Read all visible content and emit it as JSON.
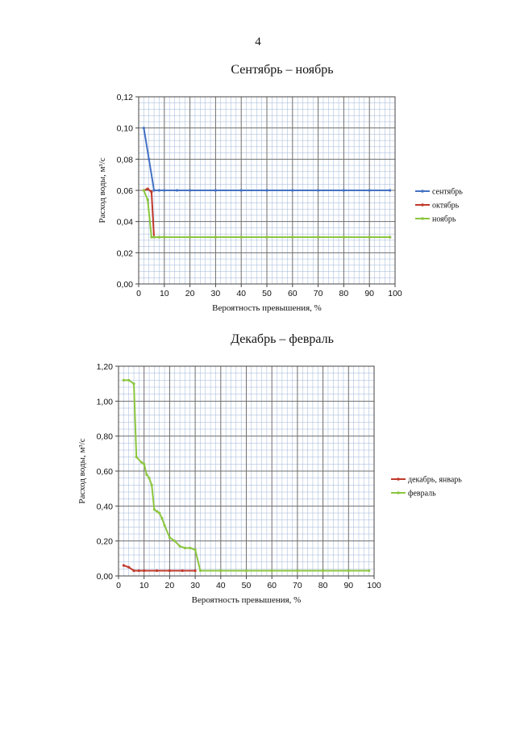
{
  "page": {
    "number": "4"
  },
  "chart_data": [
    {
      "type": "line",
      "title": "Сентябрь – ноябрь",
      "xlabel": "Вероятность превышения, %",
      "ylabel": "Расход воды, м³/с",
      "xlim": [
        0,
        100
      ],
      "ylim": [
        0,
        0.12
      ],
      "xticks": [
        "0",
        "10",
        "20",
        "30",
        "40",
        "50",
        "60",
        "70",
        "80",
        "90",
        "100"
      ],
      "yticks": [
        "0,00",
        "0,02",
        "0,04",
        "0,06",
        "0,08",
        "0,10",
        "0,12"
      ],
      "grid": true,
      "legend": "right",
      "series": [
        {
          "name": "сентябрь",
          "color": "#4472c4",
          "x": [
            2,
            4,
            6,
            8,
            10,
            15,
            20,
            30,
            40,
            50,
            60,
            70,
            80,
            90,
            98
          ],
          "y": [
            0.1,
            0.08,
            0.06,
            0.06,
            0.06,
            0.06,
            0.06,
            0.06,
            0.06,
            0.06,
            0.06,
            0.06,
            0.06,
            0.06,
            0.06
          ]
        },
        {
          "name": "октябрь",
          "color": "#c0392b",
          "x": [
            2,
            3.5,
            5,
            6,
            8,
            10,
            20,
            30,
            40,
            50,
            60,
            70,
            80,
            90,
            98
          ],
          "y": [
            0.06,
            0.061,
            0.059,
            0.03,
            0.03,
            0.03,
            0.03,
            0.03,
            0.03,
            0.03,
            0.03,
            0.03,
            0.03,
            0.03,
            0.03
          ]
        },
        {
          "name": "ноябрь",
          "color": "#8cc63f",
          "x": [
            2,
            3.5,
            5,
            6,
            8,
            10,
            20,
            30,
            40,
            50,
            60,
            70,
            80,
            90,
            98
          ],
          "y": [
            0.06,
            0.054,
            0.03,
            0.03,
            0.03,
            0.03,
            0.03,
            0.03,
            0.03,
            0.03,
            0.03,
            0.03,
            0.03,
            0.03,
            0.03
          ]
        }
      ]
    },
    {
      "type": "line",
      "title": "Декабрь – февраль",
      "xlabel": "Вероятность превышения, %",
      "ylabel": "Расход воды, м³/с",
      "xlim": [
        0,
        100
      ],
      "ylim": [
        0,
        1.2
      ],
      "xticks": [
        "0",
        "10",
        "20",
        "30",
        "40",
        "50",
        "60",
        "70",
        "80",
        "90",
        "100"
      ],
      "yticks": [
        "0,00",
        "0,20",
        "0,40",
        "0,60",
        "0,80",
        "1,00",
        "1,20"
      ],
      "grid": true,
      "legend": "right",
      "series": [
        {
          "name": "декабрь, январь",
          "color": "#c0392b",
          "x": [
            2,
            4,
            6,
            8,
            10,
            15,
            20,
            25,
            30
          ],
          "y": [
            0.06,
            0.05,
            0.03,
            0.03,
            0.03,
            0.03,
            0.03,
            0.03,
            0.03
          ]
        },
        {
          "name": "февраль",
          "color": "#8cc63f",
          "x": [
            2,
            4,
            6,
            7,
            9,
            10,
            11,
            12,
            13,
            14,
            15,
            16,
            17,
            18,
            20,
            22,
            24,
            26,
            28,
            30,
            32,
            40,
            50,
            60,
            70,
            80,
            90,
            98
          ],
          "y": [
            1.12,
            1.12,
            1.1,
            0.68,
            0.65,
            0.64,
            0.58,
            0.56,
            0.52,
            0.38,
            0.37,
            0.36,
            0.33,
            0.29,
            0.22,
            0.2,
            0.17,
            0.16,
            0.16,
            0.15,
            0.03,
            0.03,
            0.03,
            0.03,
            0.03,
            0.03,
            0.03,
            0.03
          ]
        }
      ]
    }
  ]
}
